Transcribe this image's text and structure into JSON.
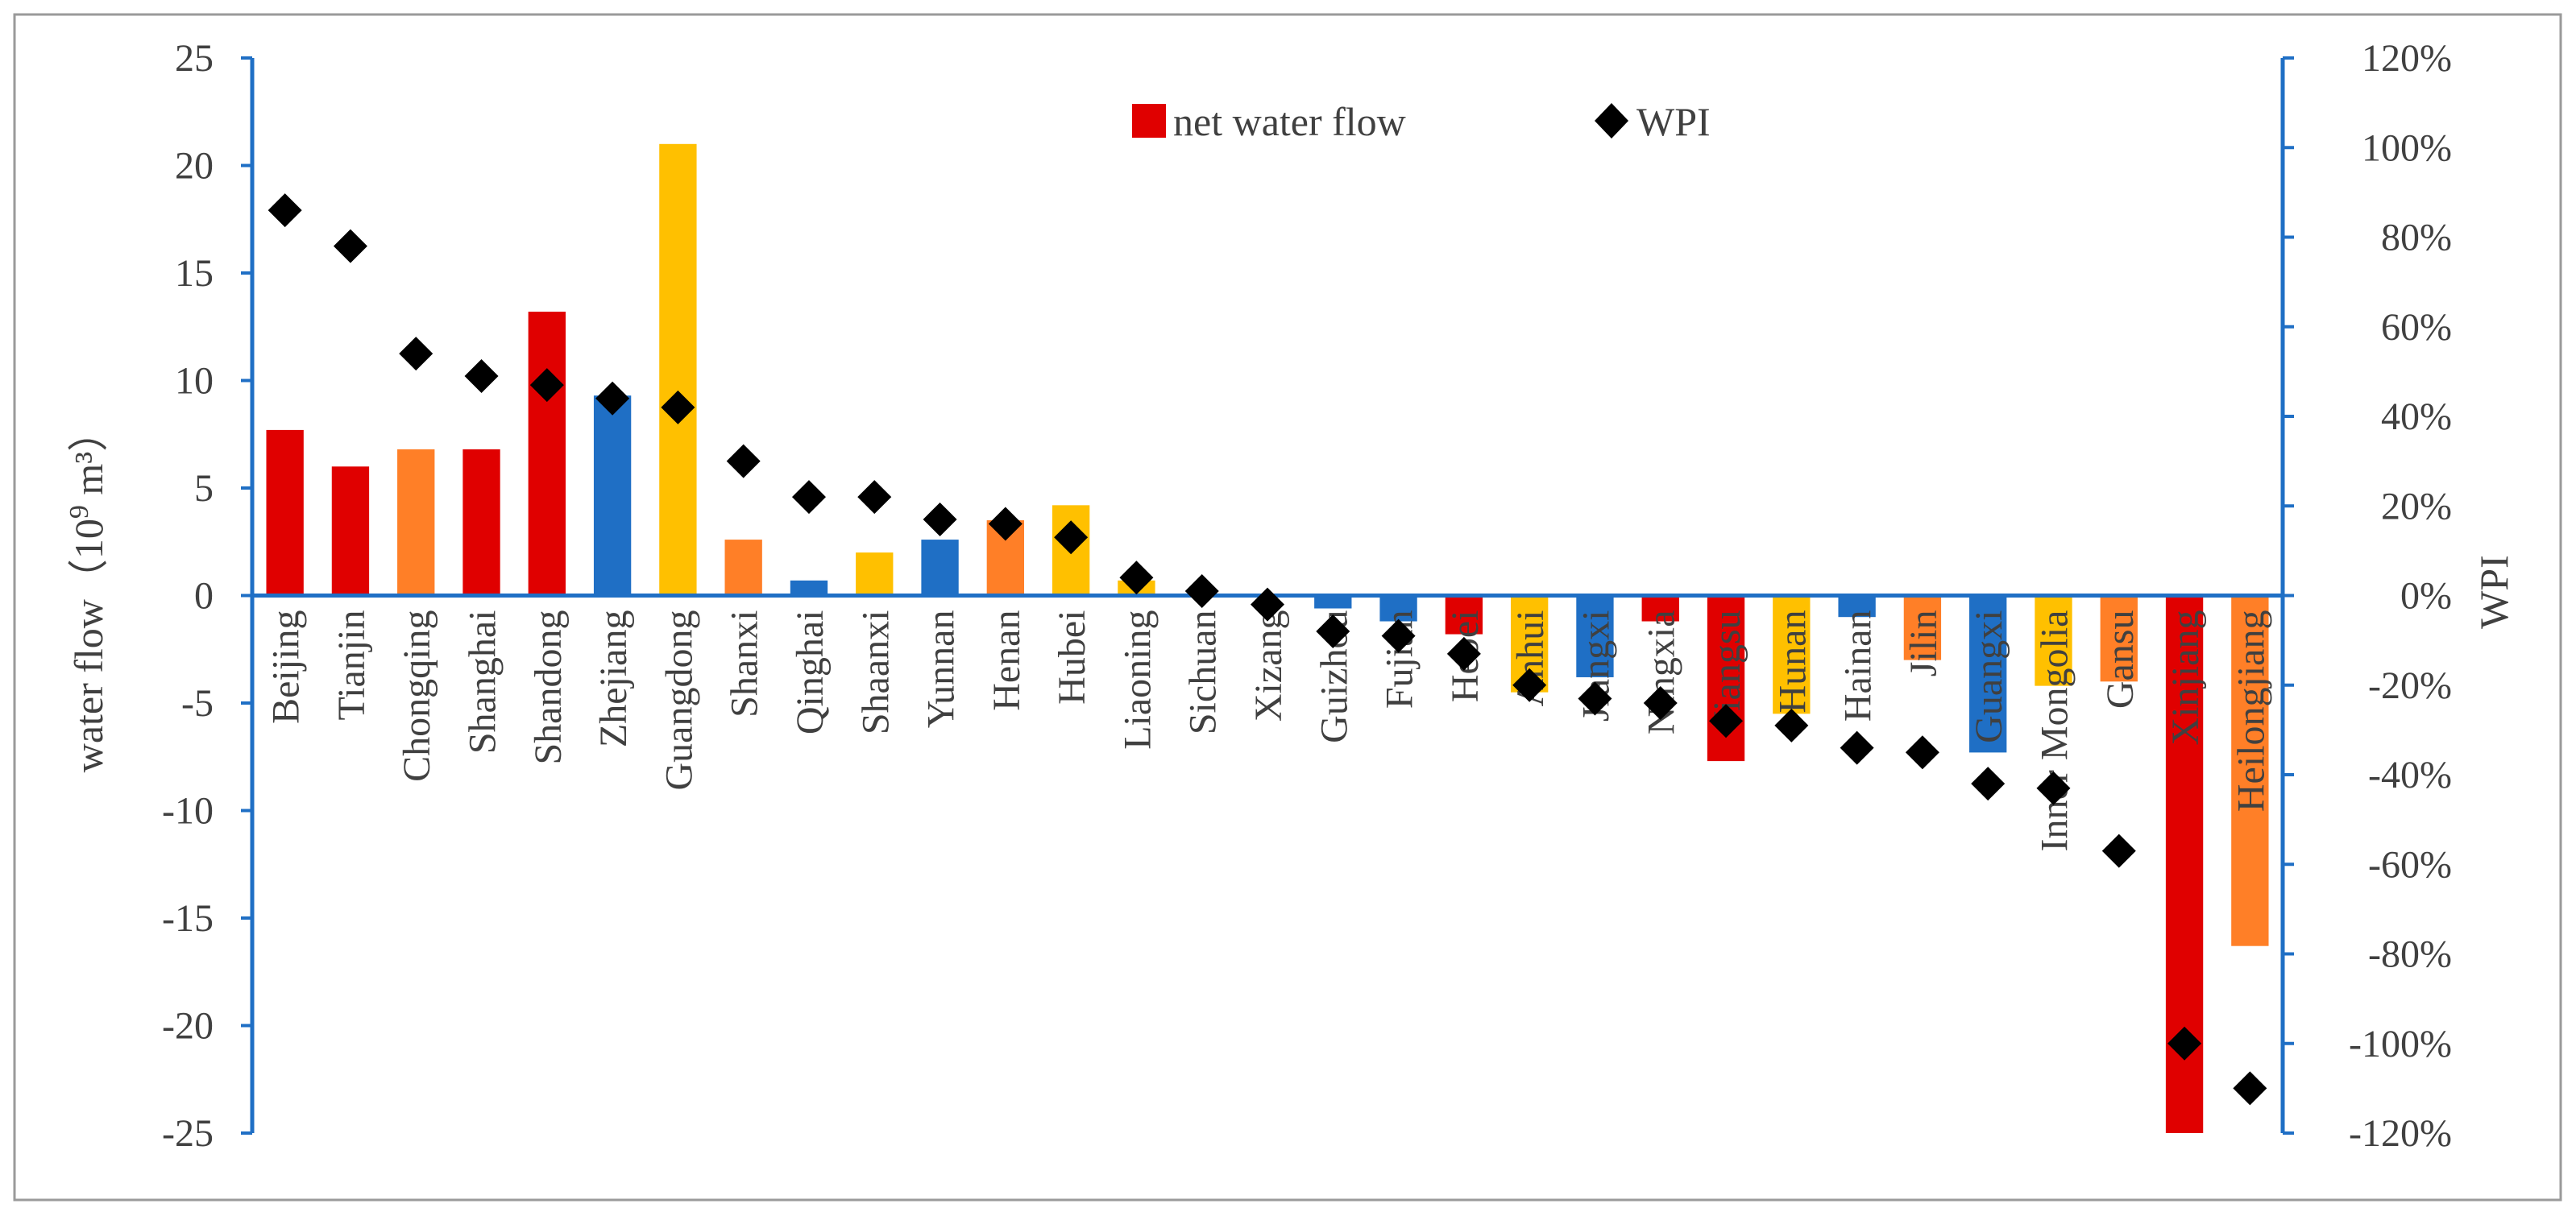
{
  "chart_data": {
    "type": "bar+scatter",
    "left_axis": {
      "title_prefix": "water flow（10",
      "title_sup": "9",
      "title_suffix": " m³）",
      "ylim": [
        -25,
        25
      ],
      "ticks": [
        25,
        20,
        15,
        10,
        5,
        0,
        -5,
        -10,
        -15,
        -20,
        -25
      ],
      "tick_labels": [
        "25",
        "20",
        "15",
        "10",
        "5",
        "0",
        "-5",
        "-10",
        "-15",
        "-20",
        "-25"
      ]
    },
    "right_axis": {
      "title": "WPI",
      "ylim": [
        -120,
        120
      ],
      "ticks": [
        120,
        100,
        80,
        60,
        40,
        20,
        0,
        -20,
        -40,
        -60,
        -80,
        -100,
        -120
      ],
      "tick_labels": [
        "120%",
        "100%",
        "80%",
        "60%",
        "40%",
        "20%",
        "0%",
        "-20%",
        "-40%",
        "-60%",
        "-80%",
        "-100%",
        "-120%"
      ]
    },
    "legend": {
      "position": "top-center",
      "items": [
        {
          "label": "net water flow",
          "marker": "square",
          "color": "#e00000"
        },
        {
          "label": "WPI",
          "marker": "diamond",
          "color": "#000000"
        }
      ]
    },
    "colors": {
      "red": "#e00000",
      "orange": "#ff7f27",
      "blue": "#1f6fc5",
      "yellow": "#ffc000",
      "wpi": "#000000",
      "axis": "#1f6fc5"
    },
    "categories": [
      "Beijing",
      "Tianjin",
      "Chongqing",
      "Shanghai",
      "Shandong",
      "Zhejiang",
      "Guangdong",
      "Shanxi",
      "Qinghai",
      "Shaanxi",
      "Yunnan",
      "Henan",
      "Hubei",
      "Liaoning",
      "Sichuan",
      "Xizang",
      "Guizhou",
      "Fujian",
      "Hebei",
      "Anhui",
      "Jiangxi",
      "Ningxia",
      "Jiangsu",
      "Hunan",
      "Hainan",
      "Jilin",
      "Guangxi",
      "Inner Mongolia",
      "Gansu",
      "Xinjiang",
      "Heilongjiang"
    ],
    "series": [
      {
        "name": "net water flow",
        "axis": "left",
        "values": [
          7.7,
          6.0,
          6.8,
          6.8,
          13.2,
          9.3,
          21.0,
          2.6,
          0.7,
          2.0,
          2.6,
          3.5,
          4.2,
          0.7,
          0.0,
          0.0,
          -0.6,
          -1.2,
          -1.8,
          -4.5,
          -3.8,
          -1.2,
          -7.7,
          -5.5,
          -1.0,
          -3.0,
          -7.3,
          -4.2,
          -4.0,
          -25.0,
          -16.3
        ],
        "colors": [
          "red",
          "red",
          "orange",
          "red",
          "red",
          "blue",
          "yellow",
          "orange",
          "blue",
          "yellow",
          "blue",
          "orange",
          "yellow",
          "yellow",
          "blue",
          "orange",
          "blue",
          "blue",
          "red",
          "yellow",
          "blue",
          "red",
          "red",
          "yellow",
          "blue",
          "orange",
          "blue",
          "yellow",
          "orange",
          "red",
          "orange"
        ]
      },
      {
        "name": "WPI",
        "axis": "right",
        "values": [
          86,
          78,
          54,
          49,
          47,
          44,
          42,
          30,
          22,
          22,
          17,
          16,
          13,
          4,
          1,
          -2,
          -8,
          -9,
          -13,
          -20,
          -23,
          -24,
          -28,
          -29,
          -34,
          -35,
          -42,
          -43,
          -57,
          -100,
          -110
        ]
      }
    ]
  }
}
